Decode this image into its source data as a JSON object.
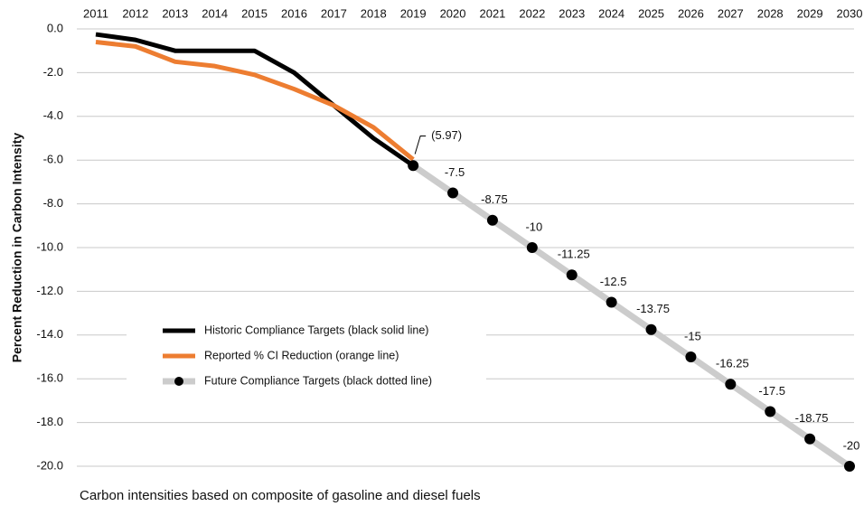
{
  "chart_data": {
    "type": "line",
    "y_axis_label": "Percent Reduction in Carbon Intensity",
    "footnote": "Carbon intensities based on composite of gasoline and diesel fuels",
    "categories": [
      "2011",
      "2012",
      "2013",
      "2014",
      "2015",
      "2016",
      "2017",
      "2018",
      "2019",
      "2020",
      "2021",
      "2022",
      "2023",
      "2024",
      "2025",
      "2026",
      "2027",
      "2028",
      "2029",
      "2030"
    ],
    "ylim": [
      0,
      -20
    ],
    "yticks": [
      {
        "value": 0,
        "label": "0.0"
      },
      {
        "value": -2,
        "label": "-2.0"
      },
      {
        "value": -4,
        "label": "-4.0"
      },
      {
        "value": -6,
        "label": "-6.0"
      },
      {
        "value": -8,
        "label": "-8.0"
      },
      {
        "value": -10,
        "label": "-10.0"
      },
      {
        "value": -12,
        "label": "-12.0"
      },
      {
        "value": -14,
        "label": "-14.0"
      },
      {
        "value": -16,
        "label": "-16.0"
      },
      {
        "value": -18,
        "label": "-18.0"
      },
      {
        "value": -20,
        "label": "-20.0"
      }
    ],
    "grid": true,
    "legend": "lower left",
    "series": [
      {
        "name": "Historic Compliance Targets (black solid line)",
        "color": "#000000",
        "values": [
          -0.25,
          -0.5,
          -1.0,
          -1.0,
          -1.0,
          -2.0,
          -3.5,
          -5.0,
          -6.25,
          null,
          null,
          null,
          null,
          null,
          null,
          null,
          null,
          null,
          null,
          null
        ]
      },
      {
        "name": "Reported % CI Reduction (orange line)",
        "color": "#ed7d31",
        "values": [
          -0.6,
          -0.8,
          -1.5,
          -1.7,
          -2.1,
          -2.75,
          -3.5,
          -4.5,
          -5.97,
          null,
          null,
          null,
          null,
          null,
          null,
          null,
          null,
          null,
          null,
          null
        ],
        "value_labels": [
          null,
          null,
          null,
          null,
          null,
          null,
          null,
          null,
          "(5.97)",
          null,
          null,
          null,
          null,
          null,
          null,
          null,
          null,
          null,
          null,
          null
        ]
      },
      {
        "name": "Future Compliance Targets (black dotted line)",
        "color": "#cccccc",
        "marker_color": "#000000",
        "values": [
          null,
          null,
          null,
          null,
          null,
          null,
          null,
          null,
          -6.25,
          -7.5,
          -8.75,
          -10,
          -11.25,
          -12.5,
          -13.75,
          -15,
          -16.25,
          -17.5,
          -18.75,
          -20
        ]
      }
    ]
  }
}
